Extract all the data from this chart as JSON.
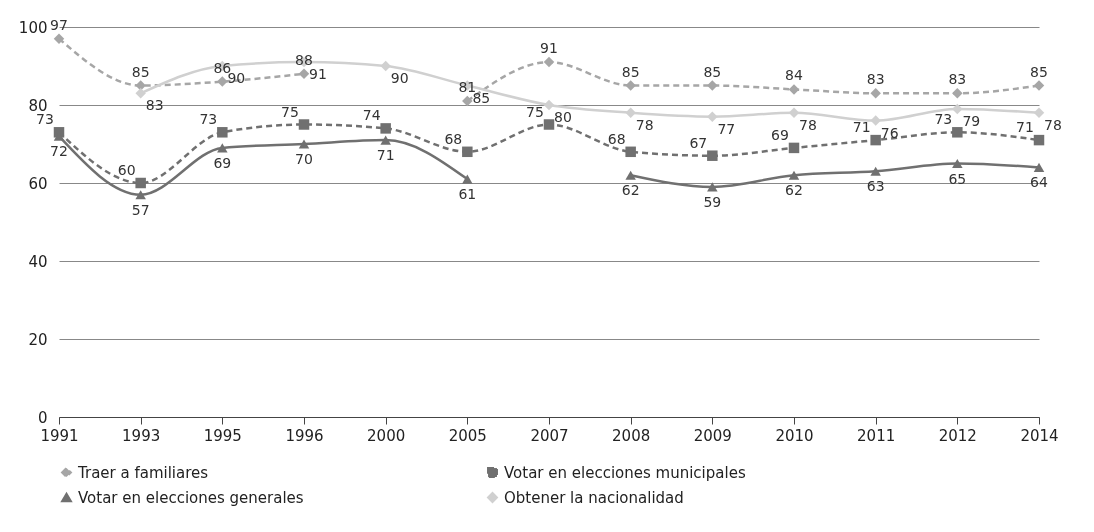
{
  "chart_data": {
    "type": "line",
    "categories": [
      "1991",
      "1993",
      "1995",
      "1996",
      "2000",
      "2005",
      "2007",
      "2008",
      "2009",
      "2010",
      "2011",
      "2012",
      "2014"
    ],
    "series": [
      {
        "name": "Traer a familiares",
        "color": "#a6a6a6",
        "line_style": "dashed",
        "marker": "diamond",
        "values": [
          97,
          85,
          86,
          88,
          null,
          81,
          91,
          85,
          85,
          84,
          83,
          83,
          85
        ]
      },
      {
        "name": "Votar en elecciones municipales",
        "color": "#707070",
        "line_style": "dashed",
        "marker": "square",
        "values": [
          73,
          60,
          73,
          75,
          74,
          68,
          75,
          68,
          67,
          69,
          71,
          73,
          71
        ]
      },
      {
        "name": "Votar en elecciones generales",
        "color": "#707070",
        "line_style": "solid",
        "marker": "triangle",
        "values": [
          72,
          57,
          69,
          70,
          71,
          61,
          null,
          62,
          59,
          62,
          63,
          65,
          64
        ]
      },
      {
        "name": "Obtener la nacionalidad",
        "color": "#d0d0d0",
        "line_style": "solid",
        "marker": "diamond",
        "values": [
          null,
          83,
          90,
          91,
          90,
          85,
          80,
          78,
          77,
          78,
          76,
          79,
          78
        ]
      }
    ],
    "ylim": [
      0,
      100
    ],
    "yticks": [
      0,
      20,
      40,
      60,
      80,
      100
    ],
    "grid": "y",
    "legend": "bottom",
    "data_labels": true
  }
}
